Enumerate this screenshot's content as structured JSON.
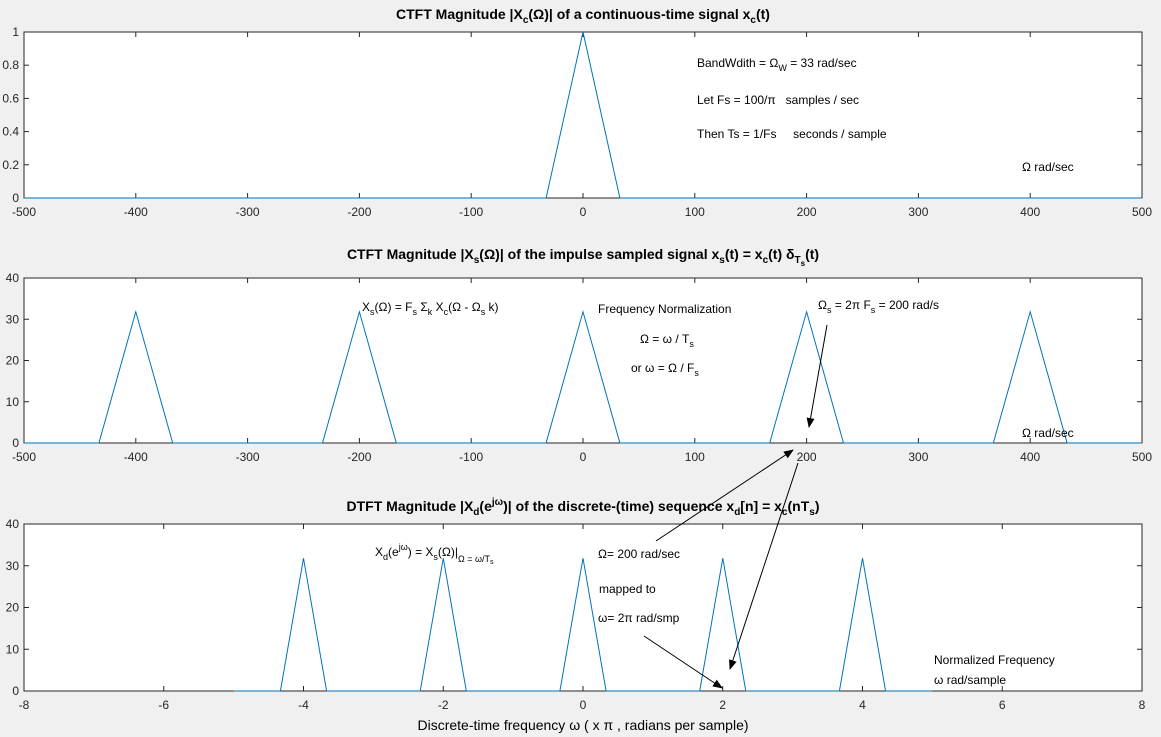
{
  "colors": {
    "line": "#0072bd",
    "axes_bg": "#ffffff",
    "figure_bg": "#f0f0f0",
    "axis": "#262626"
  },
  "chart_data": [
    {
      "type": "line",
      "title": "CTFT Magnitude |X_c(Ω)| of a continuous-time signal x_c(t)",
      "xlim": [
        -500,
        500
      ],
      "ylim": [
        0,
        1
      ],
      "xticks": [
        -500,
        -400,
        -300,
        -200,
        -100,
        0,
        100,
        200,
        300,
        400,
        500
      ],
      "yticks": [
        0,
        0.2,
        0.4,
        0.6,
        0.8,
        1
      ],
      "grid": false,
      "series": [
        {
          "x": [
            -500,
            -33,
            0,
            33,
            500
          ],
          "y": [
            0,
            0,
            1,
            0,
            0
          ]
        }
      ],
      "annotations": [
        "BandWdith = Ω_W = 33 rad/sec",
        "Let Fs = 100/π samples / sec",
        "Then Ts = 1/Fs seconds / sample",
        "Ω rad/sec"
      ]
    },
    {
      "type": "line",
      "title": "CTFT Magnitude |X_s(Ω)| of the impulse sampled signal x_s(t) = x_c(t) δ_Ts(t)",
      "xlim": [
        -500,
        500
      ],
      "ylim": [
        0,
        40
      ],
      "xticks": [
        -500,
        -400,
        -300,
        -200,
        -100,
        0,
        100,
        200,
        300,
        400,
        500
      ],
      "yticks": [
        0,
        10,
        20,
        30,
        40
      ],
      "grid": false,
      "series": [
        {
          "x": [
            -500,
            -433,
            -400,
            -367,
            -233,
            -200,
            -167,
            -33,
            0,
            33,
            167,
            200,
            233,
            367,
            400,
            433,
            500
          ],
          "y": [
            0,
            0,
            31.8,
            0,
            0,
            31.8,
            0,
            0,
            31.8,
            0,
            0,
            31.8,
            0,
            0,
            31.8,
            0,
            0
          ]
        }
      ],
      "annotations": [
        "X_s(Ω) = F_s Σ_k X_c(Ω - Ω_s k)",
        "Frequency Normalization",
        "Ω = ω / T_s",
        "or ω = Ω / F_s",
        "Ω_s = 2π F_s = 200 rad/s",
        "Ω rad/sec"
      ]
    },
    {
      "type": "line",
      "title": "DTFT Magnitude |X_d(e^jω)| of the discrete-(time) sequence x_d[n] = x_c(nT_s)",
      "xlabel": "Discrete-time frequency ω ( x π , radians per sample)",
      "xlim": [
        -8,
        8
      ],
      "ylim": [
        0,
        40
      ],
      "xticks": [
        -8,
        -6,
        -4,
        -2,
        0,
        2,
        4,
        6,
        8
      ],
      "yticks": [
        0,
        10,
        20,
        30,
        40
      ],
      "grid": false,
      "series": [
        {
          "x": [
            -5,
            -4.33,
            -4,
            -3.67,
            -2.33,
            -2,
            -1.67,
            -0.33,
            0,
            0.33,
            1.67,
            2,
            2.33,
            3.67,
            4,
            4.33,
            5
          ],
          "y": [
            0,
            0,
            31.8,
            0,
            0,
            31.8,
            0,
            0,
            31.8,
            0,
            0,
            31.8,
            0,
            0,
            31.8,
            0,
            0
          ]
        }
      ],
      "annotations": [
        "X_d(e^jω) = X_s(Ω)|_Ω = ω/T_s",
        "Ω= 200 rad/sec",
        "mapped to",
        "ω= 2π rad/smp",
        "Normalized Frequency",
        "ω rad/sample"
      ]
    }
  ],
  "text": {
    "t1": {
      "a": "CTFT Magnitude |X",
      "b": "c",
      "c": "(Ω)| of a continuous-time signal x",
      "d": "c",
      "e": "(t)"
    },
    "t2": {
      "a": "CTFT Magnitude |X",
      "b": "s",
      "c": "(Ω)| of the impulse sampled signal x",
      "d": "s",
      "e": "(t) = x",
      "f": "c",
      "g": "(t) δ",
      "h": "T",
      "i": "s",
      "j": "(t)"
    },
    "t3": {
      "a": "DTFT Magnitude |X",
      "b": "d",
      "c": "(e",
      "d": "jω",
      "e": ")| of the discrete-(time) sequence x",
      "f": "d",
      "g": "[n] = x",
      "h": "c",
      "i": "(nT",
      "j": "s",
      "k": ")"
    },
    "a1": {
      "bw_a": "BandWdith = Ω",
      "bw_b": "W",
      "bw_c": " = 33 rad/sec",
      "fs": "Let Fs = 100/π   samples / sec",
      "ts": "Then Ts = 1/Fs     seconds / sample",
      "unit": "Ω rad/sec"
    },
    "a2": {
      "xs_a": "X",
      "xs_b": "s",
      "xs_c": "(Ω) = F",
      "xs_d": "s",
      "xs_e": " Σ",
      "xs_f": "k",
      "xs_g": " X",
      "xs_h": "c",
      "xs_i": "(Ω - Ω",
      "xs_j": "s",
      "xs_k": " k)",
      "fn": "Frequency Normalization",
      "o1_a": "Ω = ω / T",
      "o1_b": "s",
      "o2_a": "or ω = Ω / F",
      "o2_b": "s",
      "os_a": "Ω",
      "os_b": "s",
      "os_c": " = 2π F",
      "os_d": "s",
      "os_e": " = 200 rad/s",
      "unit": "Ω rad/sec"
    },
    "a3": {
      "xd_a": "X",
      "xd_b": "d",
      "xd_c": "(e",
      "xd_d": "jω",
      "xd_e": ") = X",
      "xd_f": "s",
      "xd_g": "(Ω)|",
      "xd_h": "Ω = ω/T",
      "xd_i": "s",
      "om": "Ω= 200 rad/sec",
      "map": "mapped to",
      "w": "ω= 2π rad/smp",
      "nf": "Normalized Frequency",
      "unit": "ω rad/sample"
    },
    "xlabel": "Discrete-time frequency ω ( x π , radians per sample)"
  }
}
